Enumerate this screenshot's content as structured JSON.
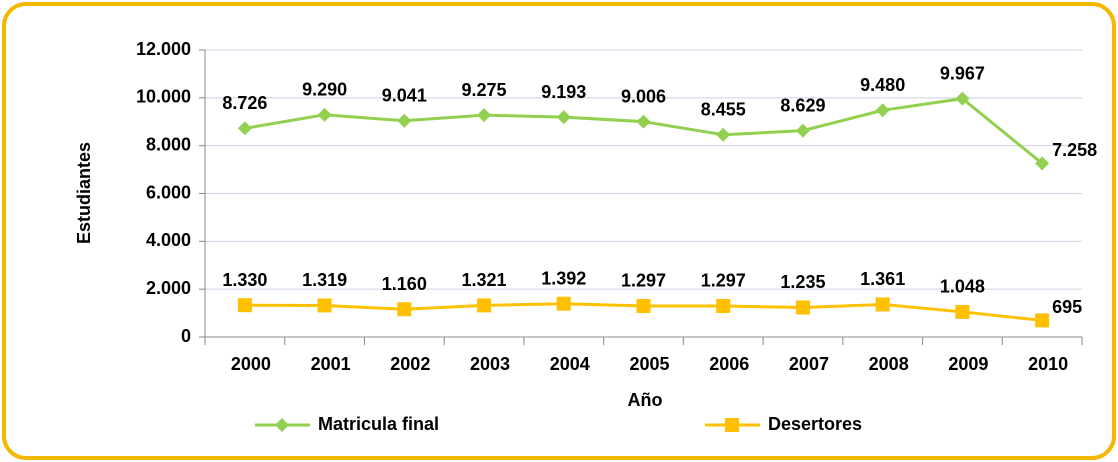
{
  "chart_data": {
    "type": "line",
    "xlabel": "Año",
    "ylabel": "Estudiantes",
    "categories": [
      "2000",
      "2001",
      "2002",
      "2003",
      "2004",
      "2005",
      "2006",
      "2007",
      "2008",
      "2009",
      "2010"
    ],
    "series": [
      {
        "name": "Matricula final",
        "color": "#92d050",
        "marker": "diamond",
        "values": [
          8726,
          9290,
          9041,
          9275,
          9193,
          9006,
          8455,
          8629,
          9480,
          9967,
          7258
        ],
        "value_labels": [
          "8.726",
          "9.290",
          "9.041",
          "9.275",
          "9.193",
          "9.006",
          "8.455",
          "8.629",
          "9.480",
          "9.967",
          "7.258"
        ]
      },
      {
        "name": "Desertores",
        "color": "#ffc000",
        "marker": "square",
        "values": [
          1330,
          1319,
          1160,
          1321,
          1392,
          1297,
          1297,
          1235,
          1361,
          1048,
          695
        ],
        "value_labels": [
          "1.330",
          "1.319",
          "1.160",
          "1.321",
          "1.392",
          "1.297",
          "1.297",
          "1.235",
          "1.361",
          "1.048",
          "695"
        ]
      }
    ],
    "ylim": [
      0,
      12000
    ],
    "yticks": [
      0,
      {
        "value": 2000,
        "label": "2.000"
      },
      {
        "value": 4000,
        "label": "4.000"
      },
      {
        "value": 6000,
        "label": "6.000"
      },
      {
        "value": 8000,
        "label": "8.000"
      },
      {
        "value": 10000,
        "label": "10.000"
      },
      {
        "value": 12000,
        "label": "12.000"
      }
    ],
    "grid": true,
    "legend": "bottom"
  }
}
